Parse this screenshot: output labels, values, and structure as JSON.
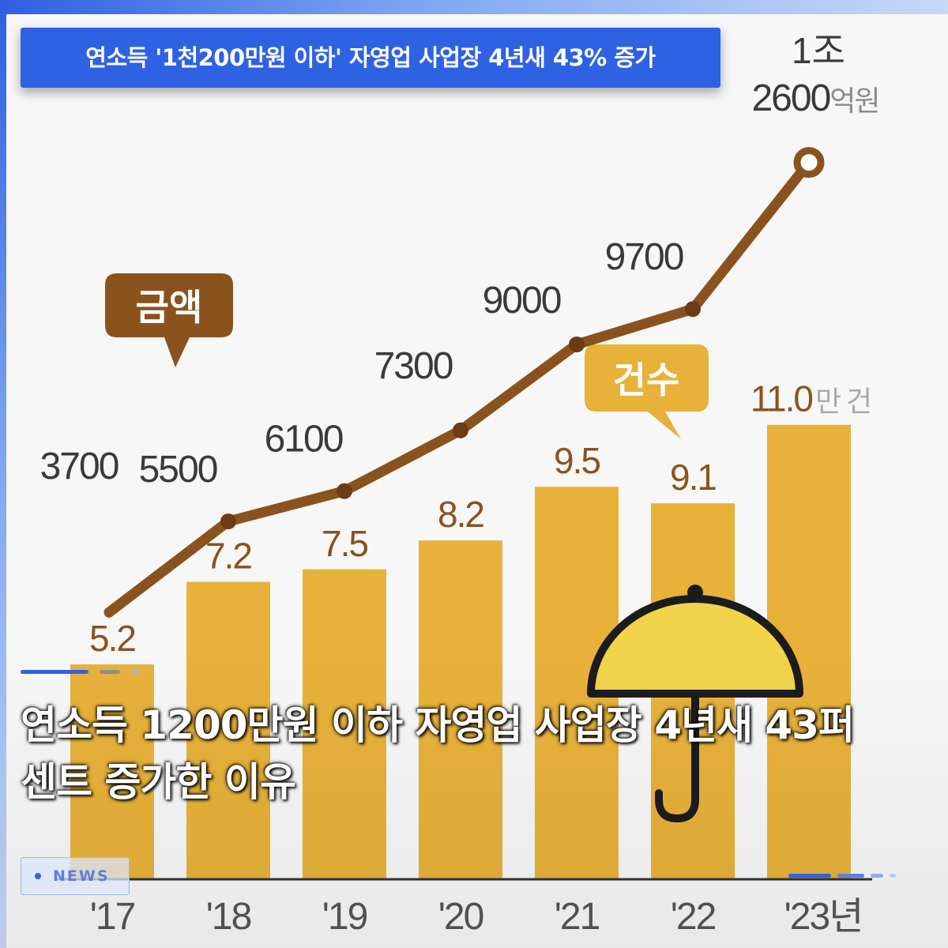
{
  "header": {
    "headline": "연소득 '1천200만원 이하' 자영업 사업장 4년새 43% 증가"
  },
  "main": {
    "title": "연소득 1200만원 이하 자영업 사업장 4년새 43퍼센트 증가한 이유",
    "badge": "NEWS"
  },
  "colors": {
    "accent": "#2f62e3",
    "line": "#8a531d",
    "bar": "#e7b13a",
    "amount_bubble": "#8a531d",
    "count_bubble": "#e7b13a",
    "umbrella": "#f2d34a"
  },
  "icons": {
    "umbrella": "umbrella-icon",
    "news": "dot-icon"
  },
  "chart_data": {
    "type": "bar",
    "categories": [
      "'17",
      "'18",
      "'19",
      "'20",
      "'21",
      "'22",
      "'23년"
    ],
    "bar_label": "건수",
    "line_label": "금액",
    "series": [
      {
        "name": "건수",
        "kind": "bar",
        "unit": "만 건",
        "values": [
          5.2,
          7.2,
          7.5,
          8.2,
          9.5,
          9.1,
          11.0
        ],
        "labels": [
          "5.2",
          "7.2",
          "7.5",
          "8.2",
          "9.5",
          "9.1",
          "11.0"
        ]
      },
      {
        "name": "금액",
        "kind": "line",
        "unit": "억원",
        "values": [
          3700,
          5500,
          6100,
          7300,
          9000,
          9700,
          12600
        ],
        "labels": [
          "3700",
          "5500",
          "6100",
          "7300",
          "9000",
          "9700",
          "2600"
        ],
        "last_label_prefix": "1조"
      }
    ]
  }
}
